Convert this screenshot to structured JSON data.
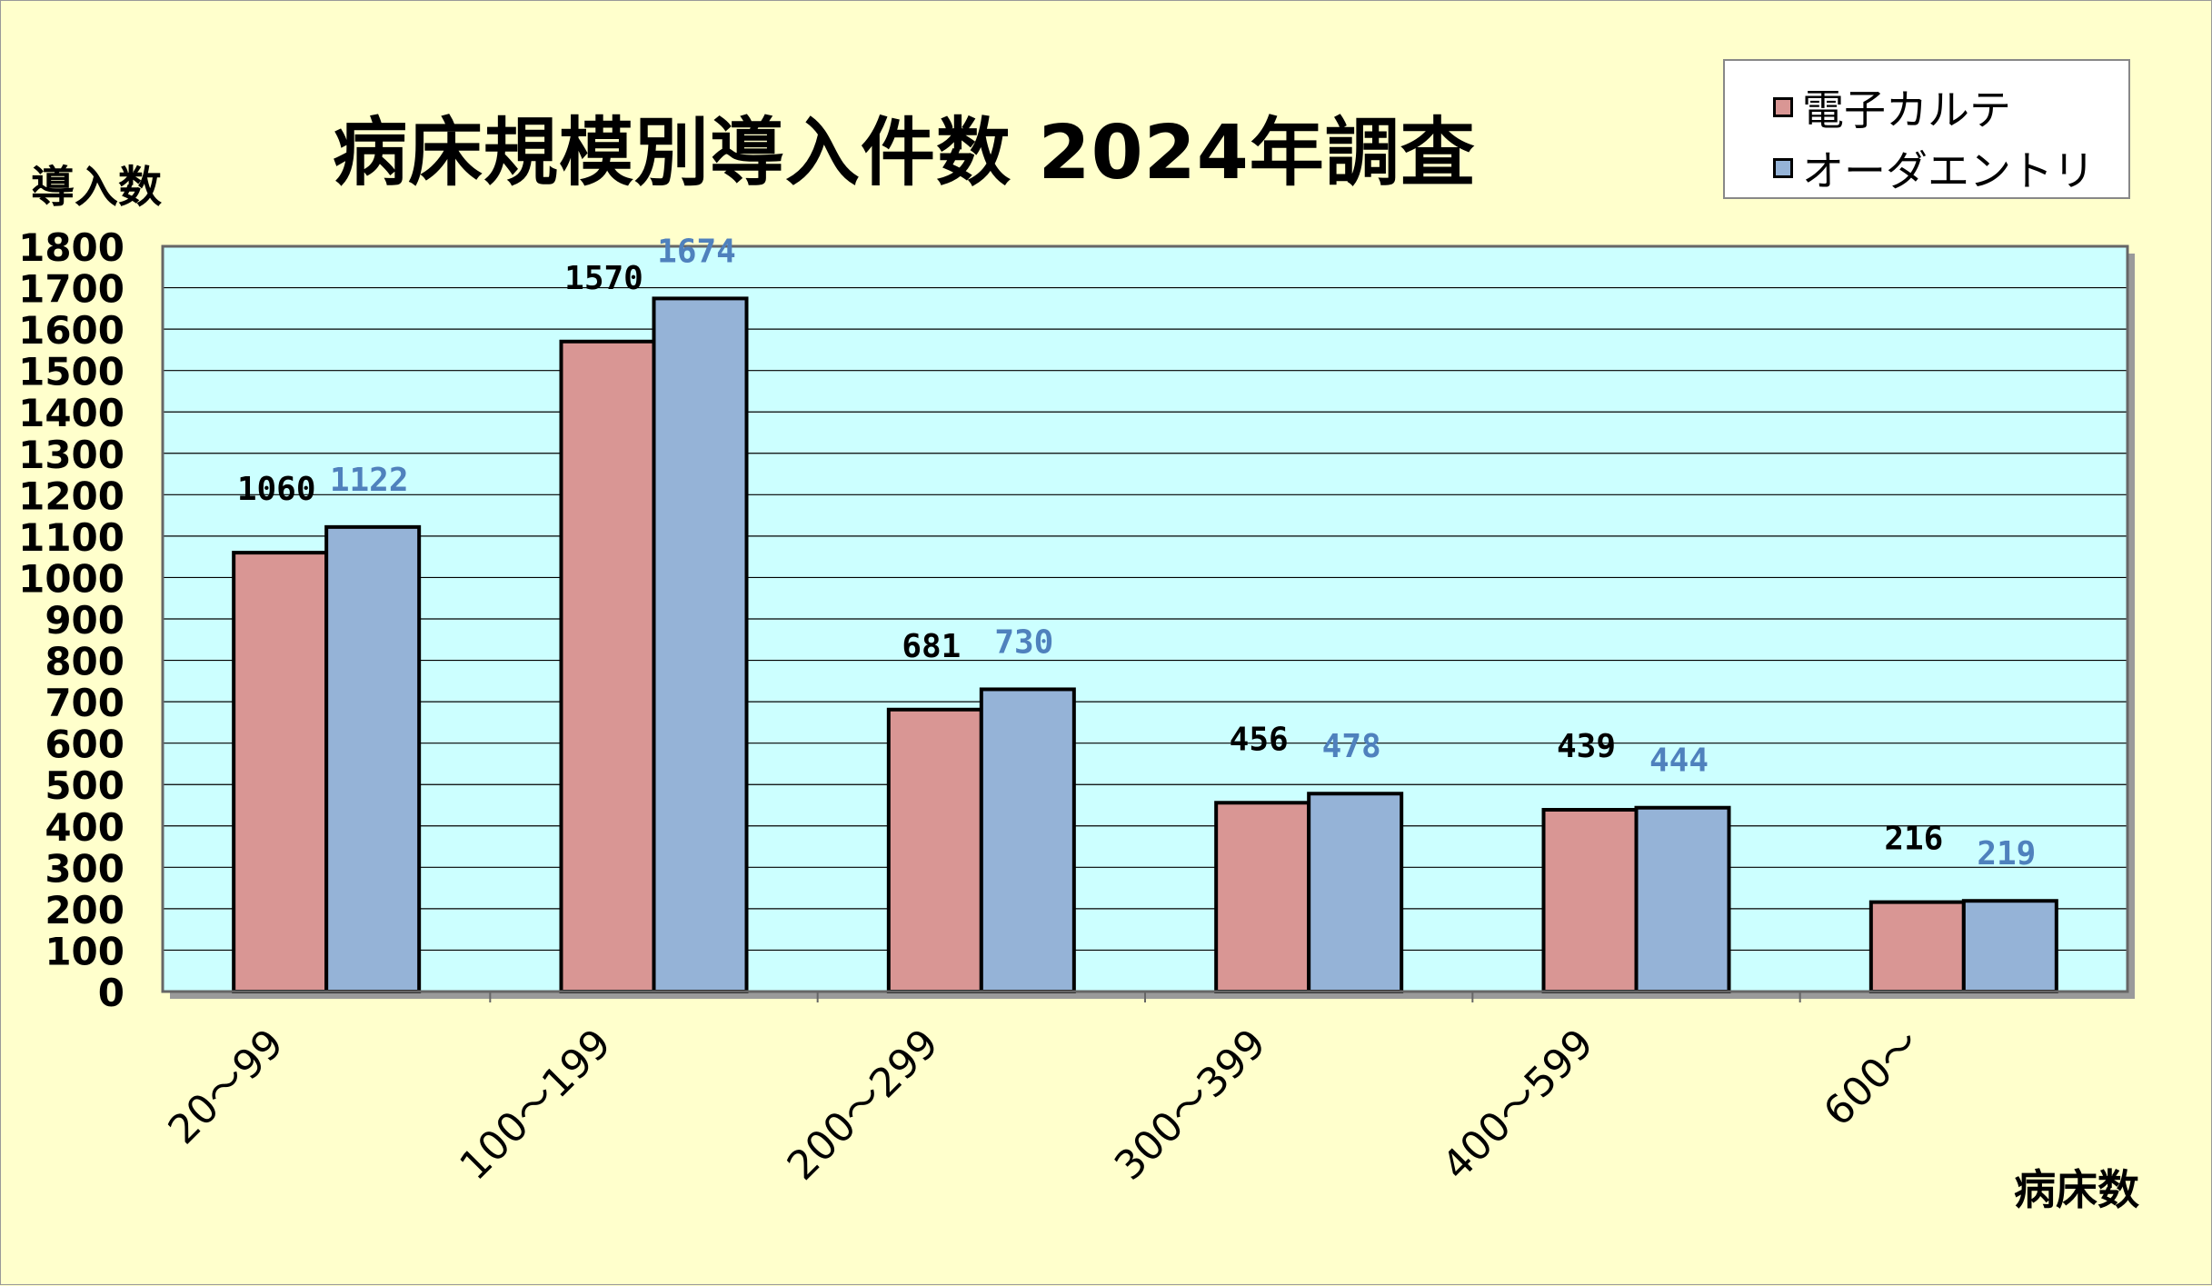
{
  "chart_data": {
    "type": "bar",
    "title": "病床規模別導入件数  2024年調査",
    "ylabel": "導入数",
    "xlabel": "病床数",
    "ylim": [
      0,
      1800
    ],
    "ytick_step": 100,
    "yticks": [
      "0",
      "100",
      "200",
      "300",
      "400",
      "500",
      "600",
      "700",
      "800",
      "900",
      "1000",
      "1100",
      "1200",
      "1300",
      "1400",
      "1500",
      "1600",
      "1700",
      "1800"
    ],
    "categories": [
      "20～99",
      "100～199",
      "200～299",
      "300～399",
      "400～599",
      "600～"
    ],
    "series": [
      {
        "name": "電子カルテ",
        "color": "#d99694",
        "label_color": "#000000",
        "values": [
          1060,
          1570,
          681,
          456,
          439,
          216
        ]
      },
      {
        "name": "オーダエントリ",
        "color": "#95b3d7",
        "label_color": "#4f81bd",
        "values": [
          1122,
          1674,
          730,
          478,
          444,
          219
        ]
      }
    ],
    "grid": true,
    "plot_background": "#ccffff",
    "page_background": "#ffffcc",
    "legend_position": "top-right"
  }
}
